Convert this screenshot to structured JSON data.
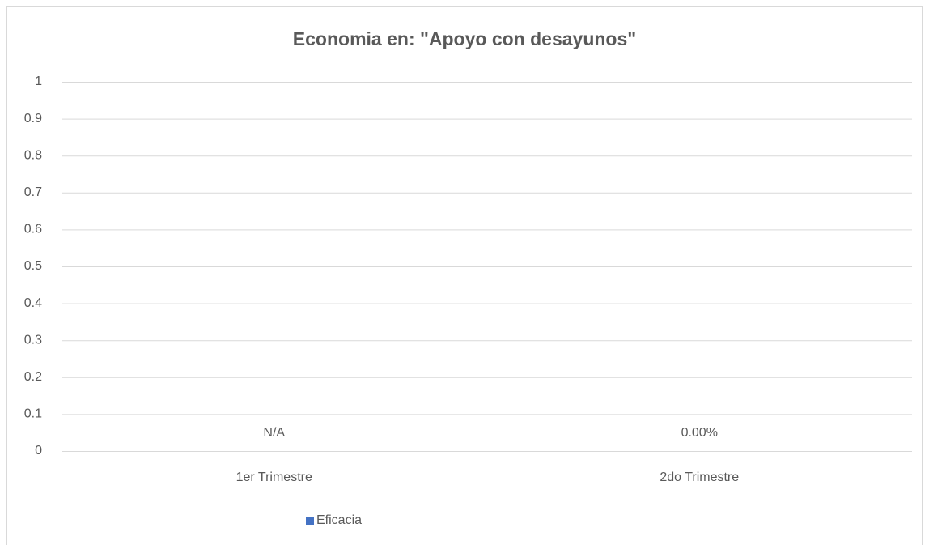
{
  "chart_data": {
    "type": "bar",
    "title": "Economia en: \"Apoyo con desayunos\"",
    "categories": [
      "1er Trimestre",
      "2do Trimestre"
    ],
    "series": [
      {
        "name": "Eficacia",
        "color": "#4472c4",
        "values": [
          null,
          0
        ],
        "value_labels": [
          "N/A",
          "0.00%"
        ]
      }
    ],
    "ylim": [
      0,
      1
    ],
    "yticks": [
      0,
      0.1,
      0.2,
      0.3,
      0.4,
      0.5,
      0.6,
      0.7,
      0.8,
      0.9,
      1
    ],
    "grid": true,
    "legend": "bottom"
  }
}
